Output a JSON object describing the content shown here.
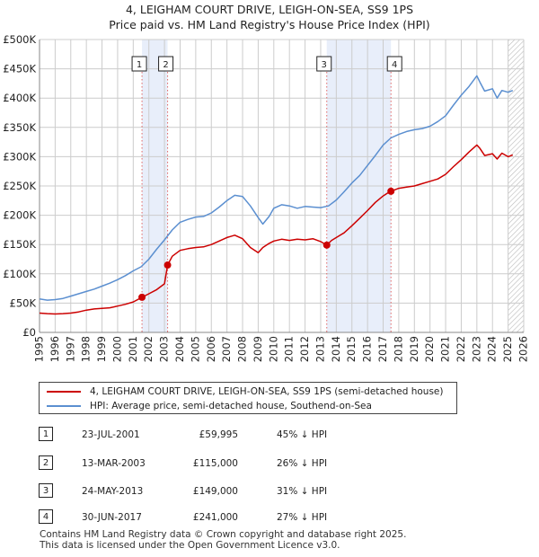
{
  "title": {
    "line1": "4, LEIGHAM COURT DRIVE, LEIGH-ON-SEA, SS9 1PS",
    "line2": "Price paid vs. HM Land Registry's House Price Index (HPI)"
  },
  "colors": {
    "red": "#cc0000",
    "blue": "#5b8fd0",
    "band": "#e8eefa",
    "grid": "#cccccc"
  },
  "chart_data": {
    "type": "line",
    "title": "4, LEIGHAM COURT DRIVE, LEIGH-ON-SEA, SS9 1PS",
    "subtitle": "Price paid vs. HM Land Registry's House Price Index (HPI)",
    "xlabel": "",
    "ylabel": "",
    "xlim": [
      1995,
      2026
    ],
    "ylim": [
      0,
      500000
    ],
    "x_ticks": [
      1995,
      1996,
      1997,
      1998,
      1999,
      2000,
      2001,
      2002,
      2003,
      2004,
      2005,
      2006,
      2007,
      2008,
      2009,
      2010,
      2011,
      2012,
      2013,
      2014,
      2015,
      2016,
      2017,
      2018,
      2019,
      2020,
      2021,
      2022,
      2023,
      2024,
      2025,
      2026
    ],
    "y_ticks": [
      {
        "value": 0,
        "label": "£0"
      },
      {
        "value": 50000,
        "label": "£50K"
      },
      {
        "value": 100000,
        "label": "£100K"
      },
      {
        "value": 150000,
        "label": "£150K"
      },
      {
        "value": 200000,
        "label": "£200K"
      },
      {
        "value": 250000,
        "label": "£250K"
      },
      {
        "value": 300000,
        "label": "£300K"
      },
      {
        "value": 350000,
        "label": "£350K"
      },
      {
        "value": 400000,
        "label": "£400K"
      },
      {
        "value": 450000,
        "label": "£450K"
      },
      {
        "value": 500000,
        "label": "£500K"
      }
    ],
    "grid": true,
    "shaded_ranges": [
      [
        2001.56,
        2003.2
      ],
      [
        2013.39,
        2017.5
      ]
    ],
    "hatched_from": 2025.0,
    "series": [
      {
        "name": "4, LEIGHAM COURT DRIVE, LEIGH-ON-SEA, SS9 1PS (semi-detached house)",
        "color": "#cc0000",
        "x": [
          1995.0,
          1995.5,
          1996.0,
          1996.5,
          1997.0,
          1997.5,
          1998.0,
          1998.5,
          1999.0,
          1999.5,
          2000.0,
          2000.5,
          2001.0,
          2001.56,
          2002.0,
          2002.5,
          2003.0,
          2003.2,
          2003.5,
          2004.0,
          2004.5,
          2005.0,
          2005.5,
          2006.0,
          2006.5,
          2007.0,
          2007.5,
          2008.0,
          2008.5,
          2009.0,
          2009.3,
          2009.7,
          2010.0,
          2010.5,
          2011.0,
          2011.5,
          2012.0,
          2012.5,
          2013.0,
          2013.39,
          2013.7,
          2014.0,
          2014.5,
          2015.0,
          2015.5,
          2016.0,
          2016.5,
          2017.0,
          2017.3,
          2017.5,
          2018.0,
          2018.5,
          2019.0,
          2019.5,
          2020.0,
          2020.5,
          2021.0,
          2021.5,
          2022.0,
          2022.5,
          2023.0,
          2023.2,
          2023.5,
          2024.0,
          2024.3,
          2024.6,
          2025.0,
          2025.3
        ],
        "values": [
          33000,
          32000,
          31500,
          32000,
          33000,
          35000,
          38000,
          40000,
          41000,
          42000,
          45000,
          48000,
          52000,
          59995,
          66000,
          73000,
          83000,
          115000,
          130000,
          140000,
          143000,
          145000,
          146000,
          150000,
          156000,
          162000,
          166000,
          160000,
          145000,
          136000,
          145000,
          152000,
          156000,
          159000,
          157000,
          159000,
          158000,
          160000,
          155000,
          149000,
          157000,
          162000,
          170000,
          182000,
          195000,
          208000,
          222000,
          233000,
          238000,
          241000,
          246000,
          248000,
          250000,
          254000,
          258000,
          262000,
          270000,
          283000,
          295000,
          308000,
          320000,
          314000,
          302000,
          305000,
          296000,
          306000,
          300000,
          303000
        ]
      },
      {
        "name": "HPI: Average price, semi-detached house, Southend-on-Sea",
        "color": "#5b8fd0",
        "x": [
          1995.0,
          1995.5,
          1996.0,
          1996.5,
          1997.0,
          1997.5,
          1998.0,
          1998.5,
          1999.0,
          1999.5,
          2000.0,
          2000.5,
          2001.0,
          2001.5,
          2002.0,
          2002.5,
          2003.0,
          2003.5,
          2004.0,
          2004.5,
          2005.0,
          2005.5,
          2006.0,
          2006.5,
          2007.0,
          2007.5,
          2008.0,
          2008.5,
          2009.0,
          2009.3,
          2009.7,
          2010.0,
          2010.5,
          2011.0,
          2011.5,
          2012.0,
          2012.5,
          2013.0,
          2013.5,
          2014.0,
          2014.5,
          2015.0,
          2015.5,
          2016.0,
          2016.5,
          2017.0,
          2017.5,
          2018.0,
          2018.5,
          2019.0,
          2019.5,
          2020.0,
          2020.5,
          2021.0,
          2021.5,
          2022.0,
          2022.5,
          2023.0,
          2023.2,
          2023.5,
          2024.0,
          2024.3,
          2024.6,
          2025.0,
          2025.3
        ],
        "values": [
          57000,
          55000,
          56000,
          58000,
          62000,
          66000,
          70000,
          74000,
          79000,
          84000,
          90000,
          97000,
          105000,
          112000,
          125000,
          142000,
          158000,
          175000,
          188000,
          193000,
          197000,
          198000,
          204000,
          214000,
          225000,
          234000,
          232000,
          216000,
          196000,
          185000,
          198000,
          212000,
          218000,
          216000,
          212000,
          215000,
          214000,
          213000,
          216000,
          226000,
          240000,
          255000,
          268000,
          285000,
          302000,
          320000,
          332000,
          338000,
          343000,
          346000,
          348000,
          352000,
          360000,
          370000,
          388000,
          405000,
          420000,
          438000,
          427000,
          412000,
          416000,
          400000,
          413000,
          410000,
          413000
        ]
      }
    ],
    "sales": [
      {
        "num": "1",
        "date": "23-JUL-2001",
        "price": "£59,995",
        "hpi": "45% ↓ HPI",
        "x": 2001.56,
        "value": 59995
      },
      {
        "num": "2",
        "date": "13-MAR-2003",
        "price": "£115,000",
        "hpi": "26% ↓ HPI",
        "x": 2003.2,
        "value": 115000
      },
      {
        "num": "3",
        "date": "24-MAY-2013",
        "price": "£149,000",
        "hpi": "31% ↓ HPI",
        "x": 2013.39,
        "value": 149000
      },
      {
        "num": "4",
        "date": "30-JUN-2017",
        "price": "£241,000",
        "hpi": "27% ↓ HPI",
        "x": 2017.5,
        "value": 241000
      }
    ]
  },
  "legend": {
    "red_label": "4, LEIGHAM COURT DRIVE, LEIGH-ON-SEA, SS9 1PS (semi-detached house)",
    "blue_label": "HPI: Average price, semi-detached house, Southend-on-Sea"
  },
  "footer": {
    "line1": "Contains HM Land Registry data © Crown copyright and database right 2025.",
    "line2": "This data is licensed under the Open Government Licence v3.0."
  }
}
